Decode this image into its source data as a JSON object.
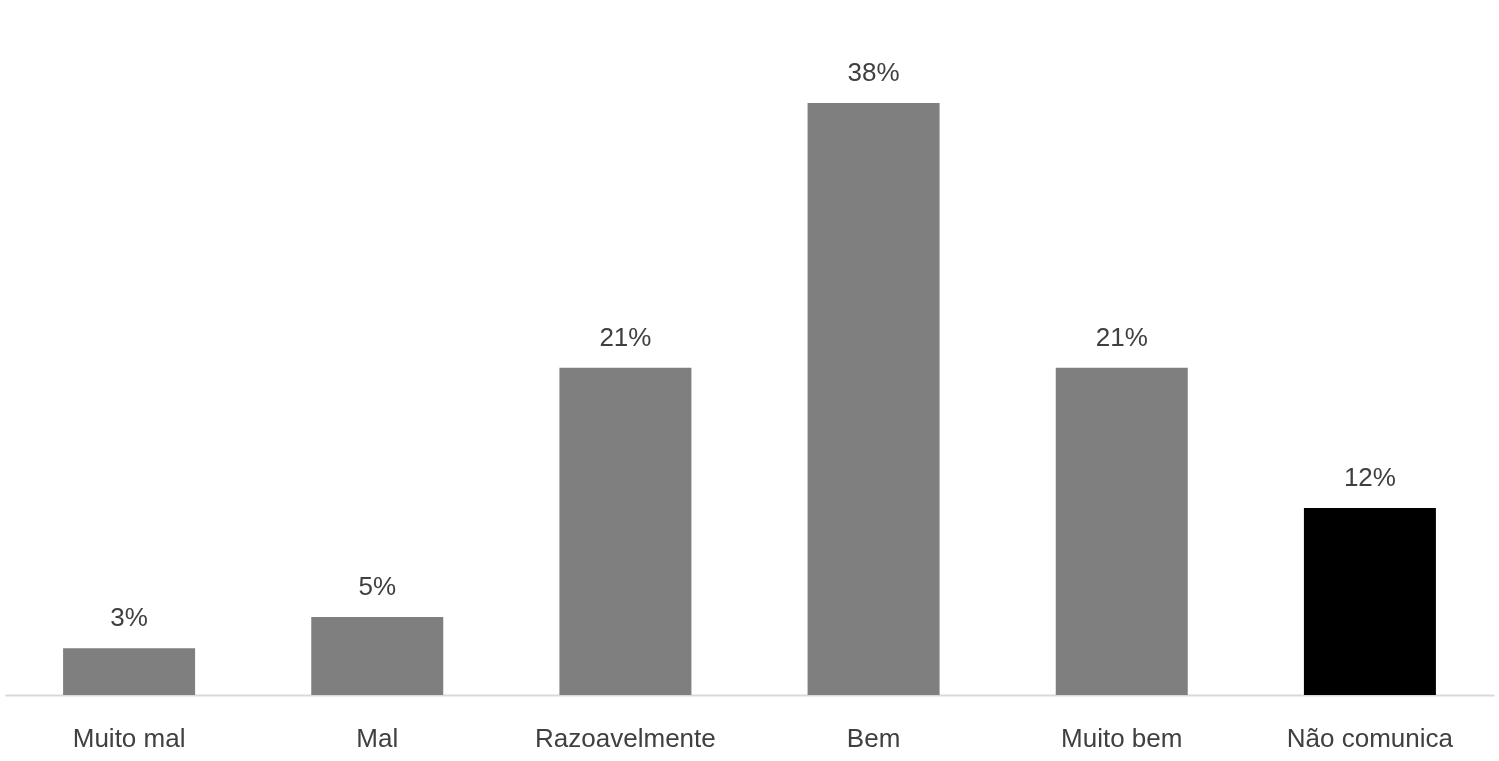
{
  "chart_data": {
    "type": "bar",
    "categories": [
      "Muito mal",
      "Mal",
      "Razoavelmente",
      "Bem",
      "Muito bem",
      "Não comunica"
    ],
    "values": [
      3,
      5,
      21,
      38,
      21,
      12
    ],
    "colors": [
      "#7f7f7f",
      "#7f7f7f",
      "#7f7f7f",
      "#7f7f7f",
      "#7f7f7f",
      "#000000"
    ],
    "value_labels": [
      "3%",
      "5%",
      "21%",
      "38%",
      "21%",
      "12%"
    ],
    "grid": false
  }
}
